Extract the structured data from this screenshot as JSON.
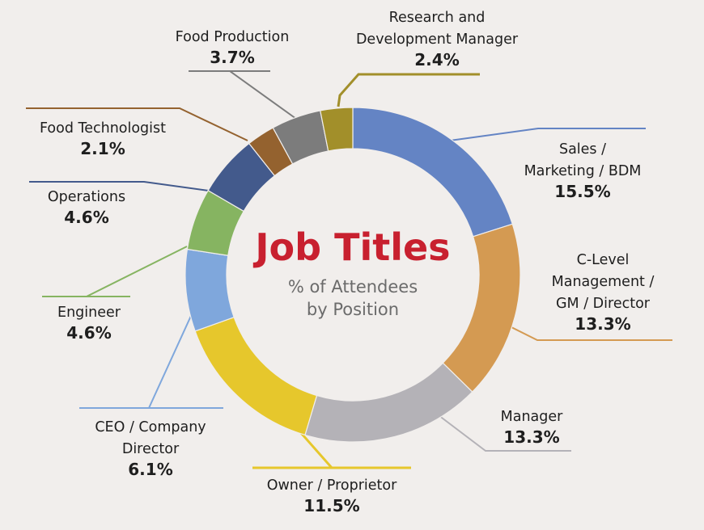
{
  "chart_data": {
    "type": "pie",
    "donut": true,
    "title": "Job Titles",
    "subtitle_lines": [
      "% of Attendees",
      "by Position"
    ],
    "slices": [
      {
        "label_lines": [
          "Sales /",
          "Marketing / BDM"
        ],
        "value_text": "15.5%",
        "value": 15.5,
        "color": "#6484c4"
      },
      {
        "label_lines": [
          "C-Level",
          "Management /",
          "GM / Director"
        ],
        "value_text": "13.3%",
        "value": 13.3,
        "color": "#d49a52"
      },
      {
        "label_lines": [
          "Manager"
        ],
        "value_text": "13.3%",
        "value": 13.3,
        "color": "#b4b2b7"
      },
      {
        "label_lines": [
          "Owner / Proprietor"
        ],
        "value_text": "11.5%",
        "value": 11.5,
        "color": "#e6c72c"
      },
      {
        "label_lines": [
          "CEO / Company",
          "Director"
        ],
        "value_text": "6.1%",
        "value": 6.1,
        "color": "#7fa7dc"
      },
      {
        "label_lines": [
          "Engineer"
        ],
        "value_text": "4.6%",
        "value": 4.6,
        "color": "#86b461"
      },
      {
        "label_lines": [
          "Operations"
        ],
        "value_text": "4.6%",
        "value": 4.6,
        "color": "#435a8c"
      },
      {
        "label_lines": [
          "Food Technologist"
        ],
        "value_text": "2.1%",
        "value": 2.1,
        "color": "#94622f"
      },
      {
        "label_lines": [
          "Food Production"
        ],
        "value_text": "3.7%",
        "value": 3.7,
        "color": "#7c7c7c"
      },
      {
        "label_lines": [
          "Research and",
          "Development Manager"
        ],
        "value_text": "2.4%",
        "value": 2.4,
        "color": "#a28f2a"
      }
    ]
  }
}
